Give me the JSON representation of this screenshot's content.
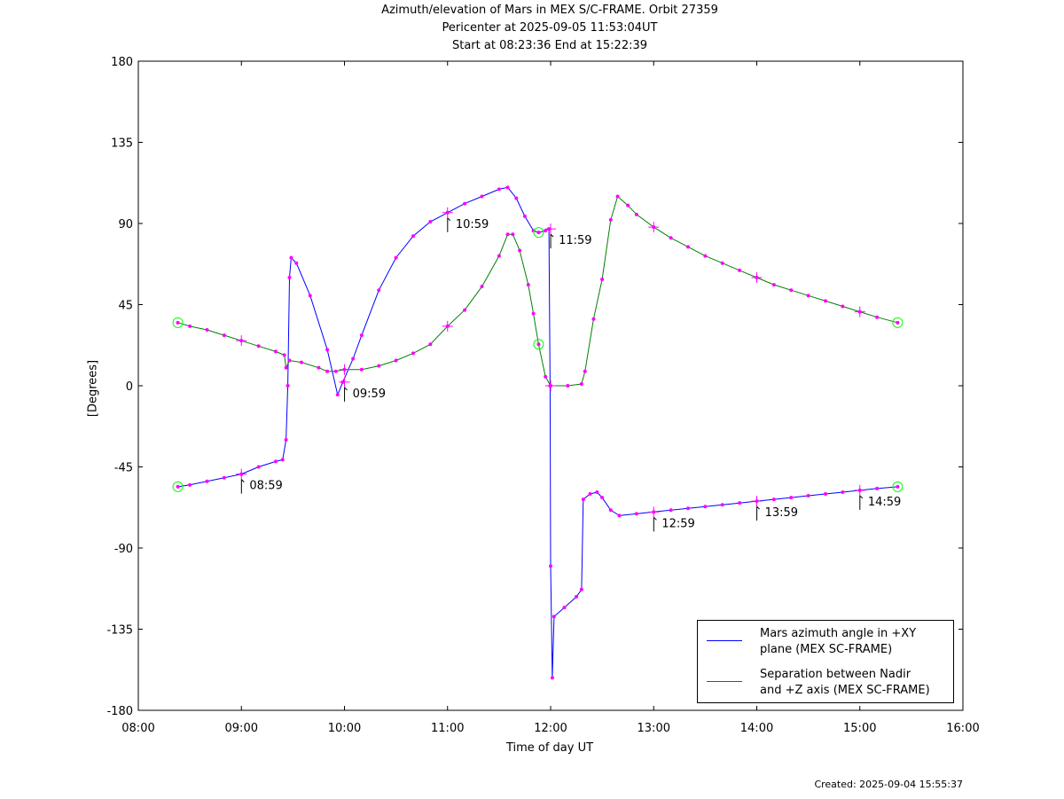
{
  "title": {
    "line1": "Azimuth/elevation of Mars in MEX S/C-FRAME.  Orbit 27359",
    "line2": "Pericenter at 2025-09-05 11:53:04UT",
    "line3": "Start at 08:23:36 End at 15:22:39"
  },
  "footer": {
    "created": "Created: 2025-09-04 15:55:37"
  },
  "chart_data": {
    "type": "line",
    "xlabel": "Time of day UT",
    "ylabel": "[Degrees]",
    "xlim": [
      "08:00",
      "16:00"
    ],
    "ylim": [
      -180,
      180
    ],
    "x_ticks": [
      "08:00",
      "09:00",
      "10:00",
      "11:00",
      "12:00",
      "13:00",
      "14:00",
      "15:00",
      "16:00"
    ],
    "y_ticks": [
      180,
      135,
      90,
      45,
      0,
      -45,
      -90,
      -135,
      -180
    ],
    "grid": false,
    "legend_position": "bottom-right",
    "colors": {
      "series_azimuth": "#0000ff",
      "series_separation": "#008000",
      "markers": "#ff00ff",
      "endpoints": "#00ff00"
    },
    "series": [
      {
        "name": "Mars azimuth angle in +XY plane (MEX SC-FRAME)",
        "legend_line1": "Mars azimuth angle in +XY",
        "legend_line2": "plane (MEX SC-FRAME)",
        "color": "#0000ff",
        "points": [
          [
            "08:23",
            -56
          ],
          [
            "08:30",
            -55
          ],
          [
            "08:40",
            -53
          ],
          [
            "08:50",
            -51
          ],
          [
            "09:00",
            -49
          ],
          [
            "09:10",
            -45
          ],
          [
            "09:20",
            -42
          ],
          [
            "09:24",
            -41
          ],
          [
            "09:26",
            -30
          ],
          [
            "09:27",
            0
          ],
          [
            "09:28",
            60
          ],
          [
            "09:29",
            71
          ],
          [
            "09:32",
            68
          ],
          [
            "09:40",
            50
          ],
          [
            "09:50",
            20
          ],
          [
            "09:56",
            -5
          ],
          [
            "09:59",
            2
          ],
          [
            "10:05",
            15
          ],
          [
            "10:10",
            28
          ],
          [
            "10:20",
            53
          ],
          [
            "10:30",
            71
          ],
          [
            "10:40",
            83
          ],
          [
            "10:50",
            91
          ],
          [
            "11:00",
            96
          ],
          [
            "11:10",
            101
          ],
          [
            "11:20",
            105
          ],
          [
            "11:30",
            109
          ],
          [
            "11:35",
            110
          ],
          [
            "11:40",
            104
          ],
          [
            "11:45",
            94
          ],
          [
            "11:50",
            86
          ],
          [
            "11:53",
            85
          ],
          [
            "11:57",
            86
          ],
          [
            "11:59",
            87
          ],
          [
            "11:59.7",
            0
          ],
          [
            "12:00",
            -100
          ],
          [
            "12:01",
            -162
          ],
          [
            "12:02",
            -128
          ],
          [
            "12:08",
            -123
          ],
          [
            "12:15",
            -117
          ],
          [
            "12:18",
            -113
          ],
          [
            "12:19",
            -63
          ],
          [
            "12:23",
            -60
          ],
          [
            "12:27",
            -59
          ],
          [
            "12:30",
            -62
          ],
          [
            "12:35",
            -69
          ],
          [
            "12:40",
            -72
          ],
          [
            "12:50",
            -71
          ],
          [
            "13:00",
            -70
          ],
          [
            "13:10",
            -69
          ],
          [
            "13:20",
            -68
          ],
          [
            "13:30",
            -67
          ],
          [
            "13:40",
            -66
          ],
          [
            "13:50",
            -65
          ],
          [
            "14:00",
            -64
          ],
          [
            "14:10",
            -63
          ],
          [
            "14:20",
            -62
          ],
          [
            "14:30",
            -61
          ],
          [
            "14:40",
            -60
          ],
          [
            "14:50",
            -59
          ],
          [
            "15:00",
            -58
          ],
          [
            "15:10",
            -57
          ],
          [
            "15:22",
            -56
          ]
        ]
      },
      {
        "name": "Separation between Nadir and +Z axis (MEX SC-FRAME)",
        "legend_line1": "Separation between Nadir",
        "legend_line2": "and +Z axis (MEX SC-FRAME)",
        "color": "#008000",
        "points": [
          [
            "08:23",
            35
          ],
          [
            "08:30",
            33
          ],
          [
            "08:40",
            31
          ],
          [
            "08:50",
            28
          ],
          [
            "09:00",
            25
          ],
          [
            "09:10",
            22
          ],
          [
            "09:20",
            19
          ],
          [
            "09:25",
            17
          ],
          [
            "09:26",
            10
          ],
          [
            "09:28",
            14
          ],
          [
            "09:35",
            13
          ],
          [
            "09:45",
            10
          ],
          [
            "09:50",
            8
          ],
          [
            "09:55",
            8
          ],
          [
            "10:00",
            9
          ],
          [
            "10:10",
            9
          ],
          [
            "10:20",
            11
          ],
          [
            "10:30",
            14
          ],
          [
            "10:40",
            18
          ],
          [
            "10:50",
            23
          ],
          [
            "11:00",
            33
          ],
          [
            "11:10",
            42
          ],
          [
            "11:20",
            55
          ],
          [
            "11:30",
            72
          ],
          [
            "11:35",
            84
          ],
          [
            "11:38",
            84
          ],
          [
            "11:42",
            75
          ],
          [
            "11:47",
            56
          ],
          [
            "11:50",
            40
          ],
          [
            "11:53",
            23
          ],
          [
            "11:57",
            5
          ],
          [
            "12:00",
            0
          ],
          [
            "12:10",
            0
          ],
          [
            "12:18",
            1
          ],
          [
            "12:20",
            8
          ],
          [
            "12:25",
            37
          ],
          [
            "12:30",
            59
          ],
          [
            "12:35",
            92
          ],
          [
            "12:39",
            105
          ],
          [
            "12:45",
            100
          ],
          [
            "12:50",
            95
          ],
          [
            "13:00",
            88
          ],
          [
            "13:10",
            82
          ],
          [
            "13:20",
            77
          ],
          [
            "13:30",
            72
          ],
          [
            "13:40",
            68
          ],
          [
            "13:50",
            64
          ],
          [
            "14:00",
            60
          ],
          [
            "14:10",
            56
          ],
          [
            "14:20",
            53
          ],
          [
            "14:30",
            50
          ],
          [
            "14:40",
            47
          ],
          [
            "14:50",
            44
          ],
          [
            "15:00",
            41
          ],
          [
            "15:10",
            38
          ],
          [
            "15:22",
            35
          ]
        ]
      }
    ],
    "annotations": [
      {
        "text": "08:59",
        "x": "08:59",
        "y": -49
      },
      {
        "text": "09:59",
        "x": "09:59",
        "y": 2
      },
      {
        "text": "10:59",
        "x": "10:59",
        "y": 96
      },
      {
        "text": "11:59",
        "x": "11:59",
        "y": 87
      },
      {
        "text": "12:59",
        "x": "12:59",
        "y": -70
      },
      {
        "text": "13:59",
        "x": "13:59",
        "y": -64
      },
      {
        "text": "14:59",
        "x": "14:59",
        "y": -58
      }
    ],
    "endpoint_circles": [
      [
        "08:23",
        -56
      ],
      [
        "08:23",
        35
      ],
      [
        "15:22",
        -56
      ],
      [
        "15:22",
        35
      ],
      [
        "11:53",
        85
      ],
      [
        "11:53",
        23
      ]
    ],
    "hour_crosses": [
      [
        "09:00",
        -49
      ],
      [
        "09:00",
        25
      ],
      [
        "10:00",
        2
      ],
      [
        "10:00",
        9
      ],
      [
        "11:00",
        96
      ],
      [
        "11:00",
        33
      ],
      [
        "12:00",
        87
      ],
      [
        "12:00",
        0
      ],
      [
        "13:00",
        -70
      ],
      [
        "13:00",
        88
      ],
      [
        "14:00",
        -64
      ],
      [
        "14:00",
        60
      ],
      [
        "15:00",
        -58
      ],
      [
        "15:00",
        41
      ]
    ]
  }
}
